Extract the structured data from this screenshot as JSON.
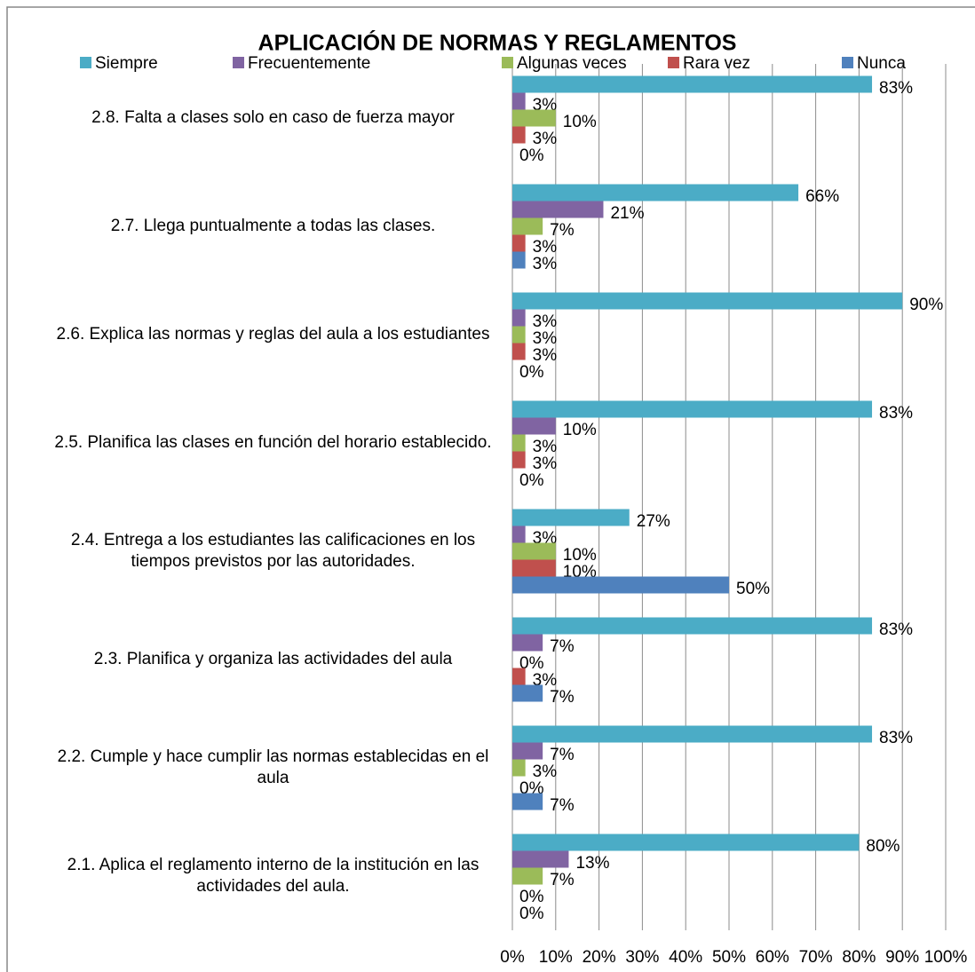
{
  "chart_data": {
    "type": "bar",
    "orientation": "horizontal",
    "title": "APLICACIÓN DE NORMAS Y REGLAMENTOS",
    "categories": [
      "2.8.  Falta a  clases solo en caso de fuerza mayor",
      "2.7.  Llega puntualmente a todas las clases.",
      "2.6.  Explica las normas y reglas del aula a los estudiantes",
      "2.5.  Planifica las clases en función del horario establecido.",
      "2.4.  Entrega a los estudiantes las calificaciones en los tiempos previstos por las autoridades.",
      "2.3.  Planifica y organiza las actividades del aula",
      "2.2.  Cumple y hace cumplir  las normas establecidas en el aula",
      "2.1.  Aplica el reglamento interno de la institución en las actividades del aula."
    ],
    "series": [
      {
        "name": "Siempre",
        "color": "#4bacc6",
        "values": [
          83,
          66,
          90,
          83,
          27,
          83,
          83,
          80
        ],
        "value_labels": [
          "83%",
          "66%",
          "90%",
          "83%",
          "27%",
          "83%",
          "83%",
          "80%"
        ]
      },
      {
        "name": "Frecuentemente",
        "color": "#8064a2",
        "values": [
          3,
          21,
          3,
          10,
          3,
          7,
          7,
          13
        ],
        "value_labels": [
          "3%",
          "21%",
          "3%",
          "10%",
          "3%",
          "7%",
          "7%",
          "13%"
        ]
      },
      {
        "name": "Algunas veces",
        "color": "#9bbb59",
        "values": [
          10,
          7,
          3,
          3,
          10,
          0,
          3,
          7
        ],
        "value_labels": [
          "10%",
          "7%",
          "3%",
          "3%",
          "10%",
          "0%",
          "3%",
          "7%"
        ]
      },
      {
        "name": "Rara vez",
        "color": "#c0504d",
        "values": [
          3,
          3,
          3,
          3,
          10,
          3,
          0,
          0
        ],
        "value_labels": [
          "3%",
          "3%",
          "3%",
          "3%",
          "10%",
          "3%",
          "0%",
          "0%"
        ]
      },
      {
        "name": "Nunca",
        "color": "#4f81bd",
        "values": [
          0,
          3,
          0,
          0,
          50,
          7,
          7,
          0
        ],
        "value_labels": [
          "0%",
          "3%",
          "0%",
          "0%",
          "50%",
          "7%",
          "7%",
          "0%"
        ]
      }
    ],
    "xlim": [
      0,
      100
    ],
    "xticks": [
      {
        "value": 0,
        "label": "0%"
      },
      {
        "value": 10,
        "label": "10%"
      },
      {
        "value": 20,
        "label": "20%"
      },
      {
        "value": 30,
        "label": "30%"
      },
      {
        "value": 40,
        "label": "40%"
      },
      {
        "value": 50,
        "label": "50%"
      },
      {
        "value": 60,
        "label": "60%"
      },
      {
        "value": 70,
        "label": "70%"
      },
      {
        "value": 80,
        "label": "80%"
      },
      {
        "value": 90,
        "label": "90%"
      },
      {
        "value": 100,
        "label": "100%"
      }
    ],
    "grid": true,
    "legend": "top"
  }
}
